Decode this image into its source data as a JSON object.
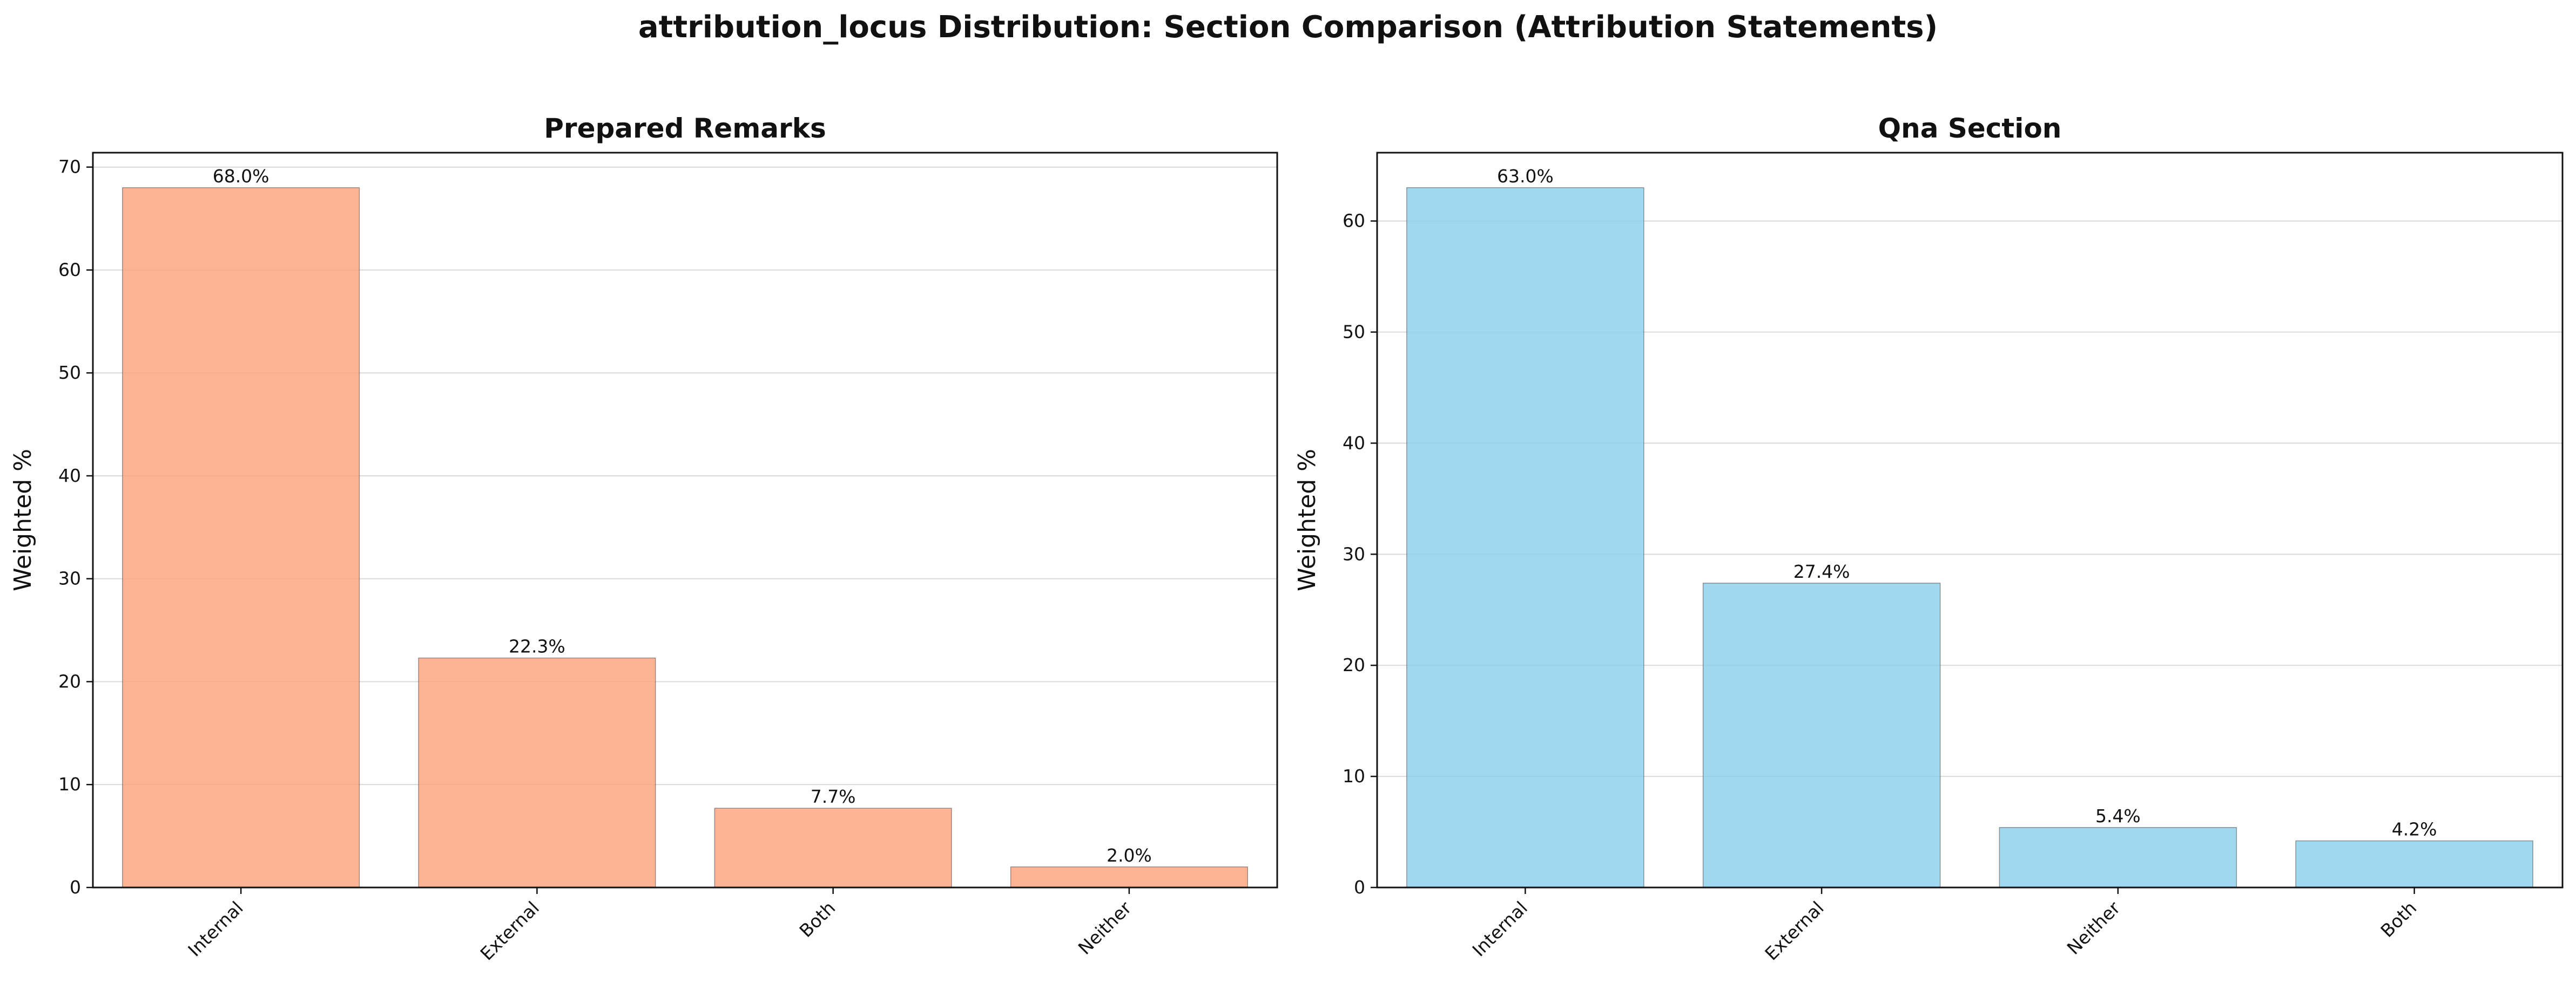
{
  "suptitle": "attribution_locus Distribution: Section Comparison (Attribution Statements)",
  "chart_data": [
    {
      "type": "bar",
      "title": "Prepared Remarks",
      "xlabel": "",
      "ylabel": "Weighted %",
      "categories": [
        "Internal",
        "External",
        "Both",
        "Neither"
      ],
      "values": [
        68.0,
        22.3,
        7.7,
        2.0
      ],
      "data_labels": [
        "68.0%",
        "22.3%",
        "7.7%",
        "2.0%"
      ],
      "ylim": [
        0,
        71.4
      ],
      "yticks": [
        0,
        10,
        20,
        30,
        40,
        50,
        60,
        70
      ],
      "color": "#FFA07A",
      "grid": "y"
    },
    {
      "type": "bar",
      "title": "Qna Section",
      "xlabel": "",
      "ylabel": "Weighted %",
      "categories": [
        "Internal",
        "External",
        "Neither",
        "Both"
      ],
      "values": [
        63.0,
        27.4,
        5.4,
        4.2
      ],
      "data_labels": [
        "63.0%",
        "27.4%",
        "5.4%",
        "4.2%"
      ],
      "ylim": [
        0,
        66.15
      ],
      "yticks": [
        0,
        10,
        20,
        30,
        40,
        50,
        60
      ],
      "color": "#87CEEB",
      "grid": "y"
    }
  ]
}
